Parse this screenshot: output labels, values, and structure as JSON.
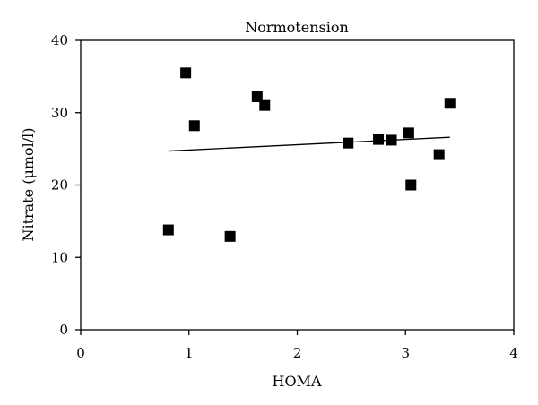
{
  "chart_data": {
    "type": "scatter",
    "title": "Normotension",
    "xlabel": "HOMA",
    "ylabel": "Nitrate (μmol/l)",
    "xlim": [
      0,
      4
    ],
    "ylim": [
      0,
      40
    ],
    "xticks": [
      0,
      1,
      2,
      3,
      4
    ],
    "yticks": [
      0,
      10,
      20,
      30,
      40
    ],
    "grid": false,
    "marker": "square",
    "marker_color": "#000000",
    "points": [
      {
        "x": 0.81,
        "y": 13.8
      },
      {
        "x": 0.97,
        "y": 35.5
      },
      {
        "x": 1.05,
        "y": 28.2
      },
      {
        "x": 1.38,
        "y": 12.9
      },
      {
        "x": 1.63,
        "y": 32.2
      },
      {
        "x": 1.7,
        "y": 31.0
      },
      {
        "x": 2.47,
        "y": 25.8
      },
      {
        "x": 2.75,
        "y": 26.3
      },
      {
        "x": 2.87,
        "y": 26.2
      },
      {
        "x": 3.03,
        "y": 27.2
      },
      {
        "x": 3.05,
        "y": 20.0
      },
      {
        "x": 3.31,
        "y": 24.2
      },
      {
        "x": 3.41,
        "y": 31.3
      }
    ],
    "trendline": {
      "x": [
        0.81,
        3.41
      ],
      "y": [
        24.7,
        26.6
      ]
    }
  }
}
